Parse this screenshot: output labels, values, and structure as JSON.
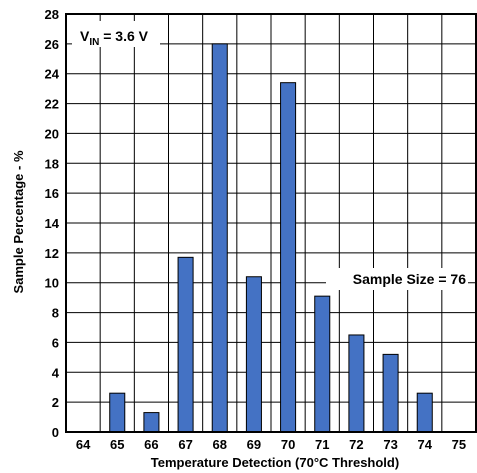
{
  "chart_data": {
    "type": "bar",
    "title": "",
    "xlabel": "Temperature Detection (70°C Threshold)",
    "ylabel": "Sample Percentage - %",
    "categories": [
      "64",
      "65",
      "66",
      "67",
      "68",
      "69",
      "70",
      "71",
      "72",
      "73",
      "74",
      "75"
    ],
    "values": [
      0,
      2.6,
      1.3,
      11.7,
      26,
      10.4,
      23.4,
      9.1,
      6.5,
      5.2,
      2.6,
      0
    ],
    "ylim": [
      0,
      28
    ],
    "yticks": [
      0,
      2,
      4,
      6,
      8,
      10,
      12,
      14,
      16,
      18,
      20,
      22,
      24,
      26,
      28
    ],
    "grid": true,
    "bar_color": "#4472c4",
    "annotations": {
      "vin_main": "V",
      "vin_sub": "IN",
      "vin_value": " = 3.6 V",
      "sample_size": "Sample Size = 76"
    }
  }
}
